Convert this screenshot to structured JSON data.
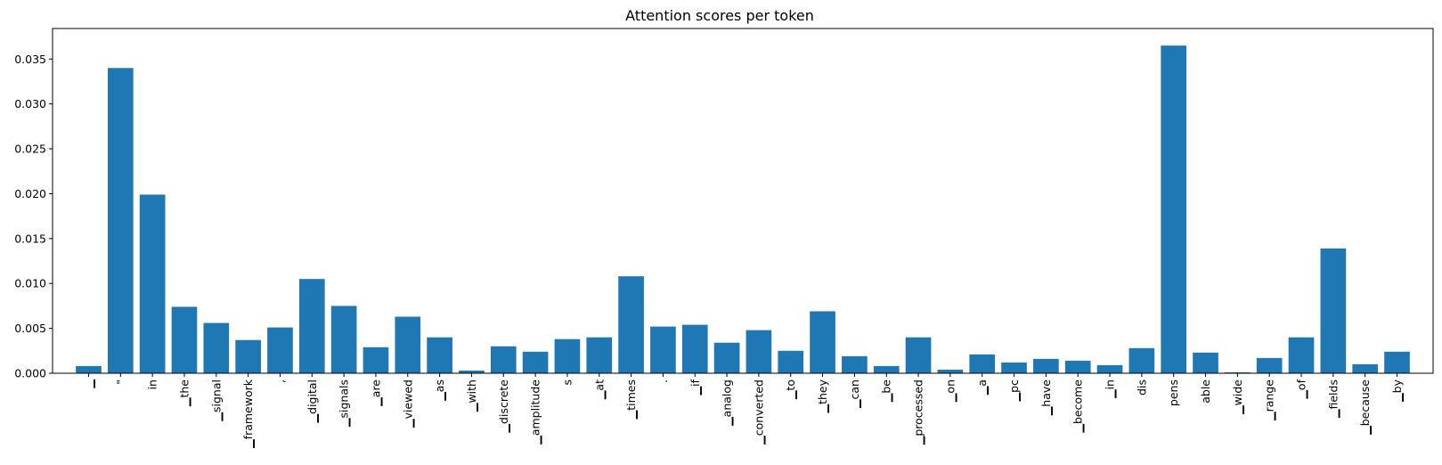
{
  "chart_data": {
    "type": "bar",
    "title": "Attention scores per token",
    "xlabel": "",
    "ylabel": "",
    "ylim": [
      0,
      0.0384
    ],
    "yticks": [
      "0.000",
      "0.005",
      "0.010",
      "0.015",
      "0.020",
      "0.025",
      "0.030",
      "0.035"
    ],
    "grid": false,
    "bar_color": "#1f77b4",
    "categories": [
      "▁",
      "\"",
      "in",
      "▁the",
      "▁signal",
      "▁framework",
      ",",
      "▁digital",
      "▁signals",
      "▁are",
      "▁viewed",
      "▁as",
      "▁with",
      "▁discrete",
      "▁amplitude",
      "s",
      "▁at",
      "▁times",
      ".",
      "▁if",
      "▁analog",
      "▁converted",
      "▁to",
      "▁they",
      "▁can",
      "▁be",
      "▁processed",
      "▁on",
      "▁a",
      "▁pc",
      "▁have",
      "▁become",
      "▁in",
      "dis",
      "pens",
      "able",
      "▁wide",
      "▁range",
      "▁of",
      "▁fields",
      "▁because",
      "▁by"
    ],
    "values": [
      0.0008,
      0.034,
      0.0199,
      0.0074,
      0.0056,
      0.0037,
      0.0051,
      0.0105,
      0.0075,
      0.0029,
      0.0063,
      0.004,
      0.0003,
      0.003,
      0.0024,
      0.0038,
      0.004,
      0.0108,
      0.0052,
      0.0054,
      0.0034,
      0.0048,
      0.0025,
      0.0069,
      0.0019,
      0.0008,
      0.004,
      0.0004,
      0.0021,
      0.0012,
      0.0016,
      0.0014,
      0.0009,
      0.0028,
      0.0365,
      0.0023,
      0.0001,
      0.0017,
      0.004,
      0.0139,
      0.001,
      0.0024
    ]
  }
}
